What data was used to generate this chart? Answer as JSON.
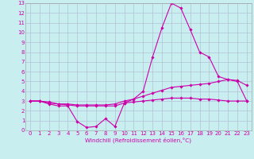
{
  "title": "",
  "xlabel": "Windchill (Refroidissement éolien,°C)",
  "bg_color": "#c8eef0",
  "grid_color": "#b0b8d0",
  "line_color": "#cc00aa",
  "xlim": [
    -0.5,
    23.5
  ],
  "ylim": [
    0,
    13
  ],
  "xticks": [
    0,
    1,
    2,
    3,
    4,
    5,
    6,
    7,
    8,
    9,
    10,
    11,
    12,
    13,
    14,
    15,
    16,
    17,
    18,
    19,
    20,
    21,
    22,
    23
  ],
  "yticks": [
    0,
    1,
    2,
    3,
    4,
    5,
    6,
    7,
    8,
    9,
    10,
    11,
    12,
    13
  ],
  "series1_x": [
    0,
    1,
    2,
    3,
    4,
    5,
    6,
    7,
    8,
    9,
    10,
    11,
    12,
    13,
    14,
    15,
    16,
    17,
    18,
    19,
    20,
    21,
    22,
    23
  ],
  "series1_y": [
    3.0,
    3.0,
    2.7,
    2.5,
    2.5,
    0.9,
    0.3,
    0.4,
    1.2,
    0.4,
    2.8,
    3.2,
    4.0,
    7.5,
    10.5,
    13.0,
    12.5,
    10.3,
    8.0,
    7.5,
    5.5,
    5.2,
    5.1,
    4.6
  ],
  "series2_x": [
    0,
    1,
    2,
    3,
    4,
    5,
    6,
    7,
    8,
    9,
    10,
    11,
    12,
    13,
    14,
    15,
    16,
    17,
    18,
    19,
    20,
    21,
    22,
    23
  ],
  "series2_y": [
    3.0,
    3.0,
    2.9,
    2.7,
    2.7,
    2.6,
    2.6,
    2.6,
    2.6,
    2.7,
    3.0,
    3.2,
    3.5,
    3.8,
    4.1,
    4.4,
    4.5,
    4.6,
    4.7,
    4.8,
    5.0,
    5.2,
    5.0,
    3.0
  ],
  "series3_x": [
    0,
    1,
    2,
    3,
    4,
    5,
    6,
    7,
    8,
    9,
    10,
    11,
    12,
    13,
    14,
    15,
    16,
    17,
    18,
    19,
    20,
    21,
    22,
    23
  ],
  "series3_y": [
    3.0,
    3.0,
    2.8,
    2.7,
    2.6,
    2.5,
    2.5,
    2.5,
    2.5,
    2.5,
    2.8,
    2.9,
    3.0,
    3.1,
    3.2,
    3.3,
    3.3,
    3.3,
    3.2,
    3.2,
    3.1,
    3.0,
    3.0,
    3.0
  ],
  "tick_fontsize": 5.0,
  "xlabel_fontsize": 5.2,
  "marker_size": 1.8,
  "linewidth": 0.8
}
